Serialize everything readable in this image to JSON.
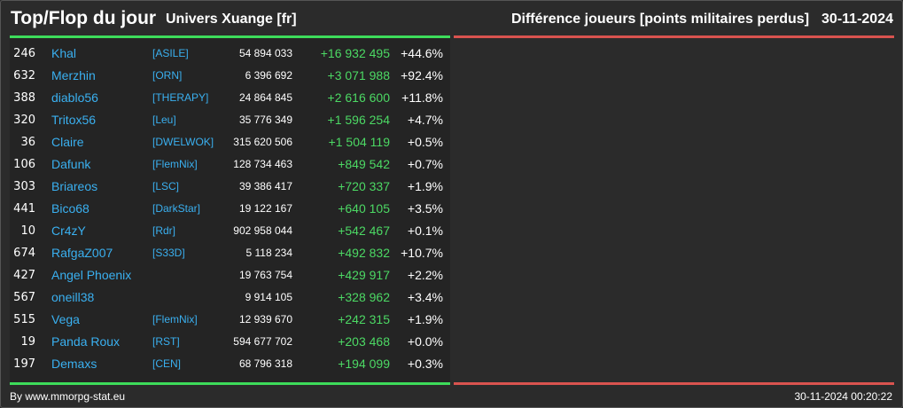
{
  "header": {
    "title": "Top/Flop du jour",
    "universe": "Univers Xuange [fr]",
    "metric": "Différence joueurs [points militaires perdus]",
    "date": "30-11-2024"
  },
  "colors": {
    "positive": "#3ddc5a",
    "negative": "#d9534f",
    "link": "#3ab0f0"
  },
  "rows": [
    {
      "rank": "246",
      "name": "Khal",
      "alliance": "[ASILE]",
      "total": "54 894 033",
      "diff": "+16 932 495",
      "pct": "+44.6%"
    },
    {
      "rank": "632",
      "name": "Merzhin",
      "alliance": "[ORN]",
      "total": "6 396 692",
      "diff": "+3 071 988",
      "pct": "+92.4%"
    },
    {
      "rank": "388",
      "name": "diablo56",
      "alliance": "[THERAPY]",
      "total": "24 864 845",
      "diff": "+2 616 600",
      "pct": "+11.8%"
    },
    {
      "rank": "320",
      "name": "Tritox56",
      "alliance": "[Leu]",
      "total": "35 776 349",
      "diff": "+1 596 254",
      "pct": "+4.7%"
    },
    {
      "rank": "36",
      "name": "Claire",
      "alliance": "[DWELWOK]",
      "total": "315 620 506",
      "diff": "+1 504 119",
      "pct": "+0.5%"
    },
    {
      "rank": "106",
      "name": "Dafunk",
      "alliance": "[FlemNix]",
      "total": "128 734 463",
      "diff": "+849 542",
      "pct": "+0.7%"
    },
    {
      "rank": "303",
      "name": "Briareos",
      "alliance": "[LSC]",
      "total": "39 386 417",
      "diff": "+720 337",
      "pct": "+1.9%"
    },
    {
      "rank": "441",
      "name": "Bico68",
      "alliance": "[DarkStar]",
      "total": "19 122 167",
      "diff": "+640 105",
      "pct": "+3.5%"
    },
    {
      "rank": "10",
      "name": "Cr4zY",
      "alliance": "[Rdr]",
      "total": "902 958 044",
      "diff": "+542 467",
      "pct": "+0.1%"
    },
    {
      "rank": "674",
      "name": "RafgaZ007",
      "alliance": "[S33D]",
      "total": "5 118 234",
      "diff": "+492 832",
      "pct": "+10.7%"
    },
    {
      "rank": "427",
      "name": "Angel Phoenix",
      "alliance": "",
      "total": "19 763 754",
      "diff": "+429 917",
      "pct": "+2.2%"
    },
    {
      "rank": "567",
      "name": "oneill38",
      "alliance": "",
      "total": "9 914 105",
      "diff": "+328 962",
      "pct": "+3.4%"
    },
    {
      "rank": "515",
      "name": "Vega",
      "alliance": "[FlemNix]",
      "total": "12 939 670",
      "diff": "+242 315",
      "pct": "+1.9%"
    },
    {
      "rank": "19",
      "name": "Panda Roux",
      "alliance": "[RST]",
      "total": "594 677 702",
      "diff": "+203 468",
      "pct": "+0.0%"
    },
    {
      "rank": "197",
      "name": "Demaxs",
      "alliance": "[CEN]",
      "total": "68 796 318",
      "diff": "+194 099",
      "pct": "+0.3%"
    }
  ],
  "footer": {
    "source": "By www.mmorpg-stat.eu",
    "timestamp": "30-11-2024 00:20:22"
  }
}
